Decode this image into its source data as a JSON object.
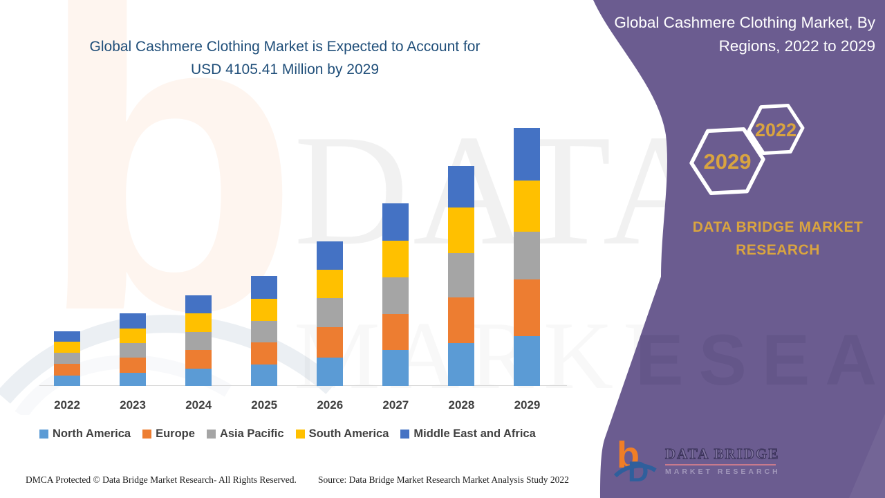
{
  "header": {
    "title_line1": "Global Cashmere Clothing Market is Expected to Account for",
    "title_line2": "USD 4105.41 Million by 2029"
  },
  "sidebar": {
    "title_line1": "Global Cashmere Clothing Market, By",
    "title_line2": "Regions, 2022 to 2029",
    "hex_badge_start": "2022",
    "hex_badge_end": "2029",
    "brand_line1": "DATA BRIDGE MARKET",
    "brand_line2": "RESEARCH",
    "logo_brand": "DATA BRIDGE",
    "logo_sub": "MARKET RESEARCH",
    "colors": {
      "background": "#6B5C90",
      "accent_gold": "#D9A440"
    }
  },
  "watermarks": {
    "logo_letter": "b",
    "chart_text_row1": "DATA B",
    "chart_text_row2": "MARKE",
    "sidebar_text": "RESEARCH"
  },
  "chart_data": {
    "type": "bar",
    "stacked": true,
    "title": "Global Cashmere Clothing Market is Expected to Account for USD 4105.41 Million by 2029",
    "unit": "USD Million",
    "categories": [
      "2022",
      "2023",
      "2024",
      "2025",
      "2026",
      "2027",
      "2028",
      "2029"
    ],
    "series": [
      {
        "name": "North America",
        "color": "#5B9BD5",
        "values": [
          165,
          209,
          275,
          337,
          447,
          576,
          681,
          791
        ]
      },
      {
        "name": "Europe",
        "color": "#ED7D31",
        "values": [
          182,
          242,
          300,
          352,
          487,
          567,
          722,
          901
        ]
      },
      {
        "name": "Asia Pacific",
        "color": "#A5A5A5",
        "values": [
          176,
          235,
          286,
          344,
          466,
          587,
          706,
          758
        ]
      },
      {
        "name": "South America",
        "color": "#FFC000",
        "values": [
          180,
          231,
          293,
          352,
          443,
          578,
          725,
          820
        ]
      },
      {
        "name": "Middle East and Africa",
        "color": "#4472C4",
        "values": [
          168,
          237,
          286,
          367,
          458,
          593,
          659,
          835.41
        ]
      }
    ],
    "totals": [
      871,
      1154,
      1440,
      1752,
      2301,
      2901,
      3493,
      4105.41
    ],
    "ylim": [
      0,
      4105.41
    ],
    "y_axis_visible": false,
    "grid": false,
    "legend_position": "bottom"
  },
  "footer": {
    "left": "DMCA Protected © Data Bridge Market Research- All Rights Reserved.",
    "right": "Source: Data Bridge Market Research Market Analysis Study 2022"
  }
}
